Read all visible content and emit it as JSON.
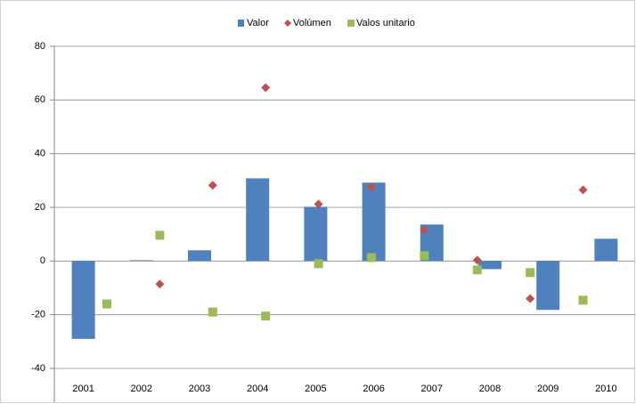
{
  "chart_data": {
    "type": "bar",
    "categories": [
      "2001",
      "2002",
      "2003",
      "2004",
      "2005",
      "2006",
      "2007",
      "2008",
      "2009",
      "2010"
    ],
    "series": [
      {
        "name": "Valor",
        "type": "bar",
        "color": "#4f81bd",
        "values": [
          -29,
          0.3,
          4,
          30.8,
          20.2,
          29.2,
          13.6,
          -3,
          -18.2,
          8.3
        ]
      },
      {
        "name": "Volúmen",
        "type": "scatter",
        "marker": "diamond",
        "color": "#c0504d",
        "values": [
          null,
          -8.6,
          28.2,
          64.6,
          21.2,
          27.5,
          11.6,
          0.3,
          -14,
          26.5
        ]
      },
      {
        "name": "Valos unitario",
        "type": "scatter",
        "marker": "square",
        "color": "#9bbb59",
        "values": [
          -16,
          9.6,
          -19,
          -20.5,
          -1,
          1.3,
          2,
          -3.3,
          -4.3,
          -14.6
        ]
      }
    ],
    "ylim": [
      -40,
      80
    ],
    "yticks": [
      -40,
      -20,
      0,
      20,
      40,
      60,
      80
    ],
    "grid": true,
    "legend": "top"
  }
}
